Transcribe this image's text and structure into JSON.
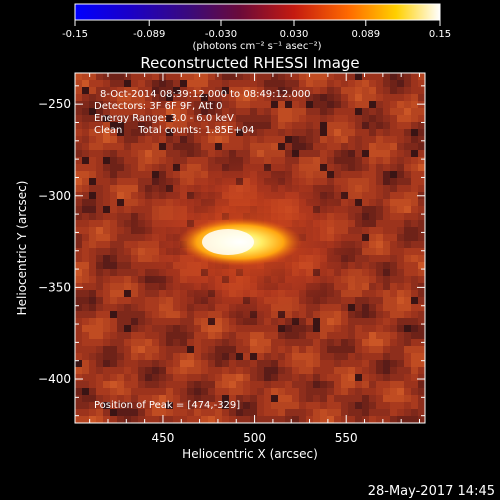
{
  "chart_data": {
    "type": "heatmap",
    "title": "Reconstructed RHESSI Image",
    "xlabel": "Heliocentric X (arcsec)",
    "ylabel": "Heliocentric Y (arcsec)",
    "xlim": [
      402,
      593
    ],
    "ylim": [
      -424,
      -233
    ],
    "x_ticks": [
      450,
      500,
      550
    ],
    "y_ticks": [
      -250,
      -300,
      -350,
      -400
    ],
    "colorbar": {
      "range": [
        -0.15,
        0.15
      ],
      "ticks": [
        "-0.15",
        "-0.089",
        "-0.030",
        "0.030",
        "0.089",
        "0.15"
      ],
      "label": "(photons cm⁻² s⁻¹ asec⁻²)",
      "colormap": "blue-purple-red-yellow-white"
    },
    "annotations": [
      "8-Oct-2014 08:39:12.000 to 08:49:12.000",
      "Detectors: 3F 6F 9F, Att 0",
      "Energy Range: 3.0 - 6.0 keV",
      "Clean     Total counts: 1.85E+04",
      "Position of Peak = [474,-329]"
    ],
    "peak": {
      "x": 474,
      "y": -329
    },
    "grid": false
  },
  "footer": {
    "date": "28-May-2017 14:45"
  }
}
